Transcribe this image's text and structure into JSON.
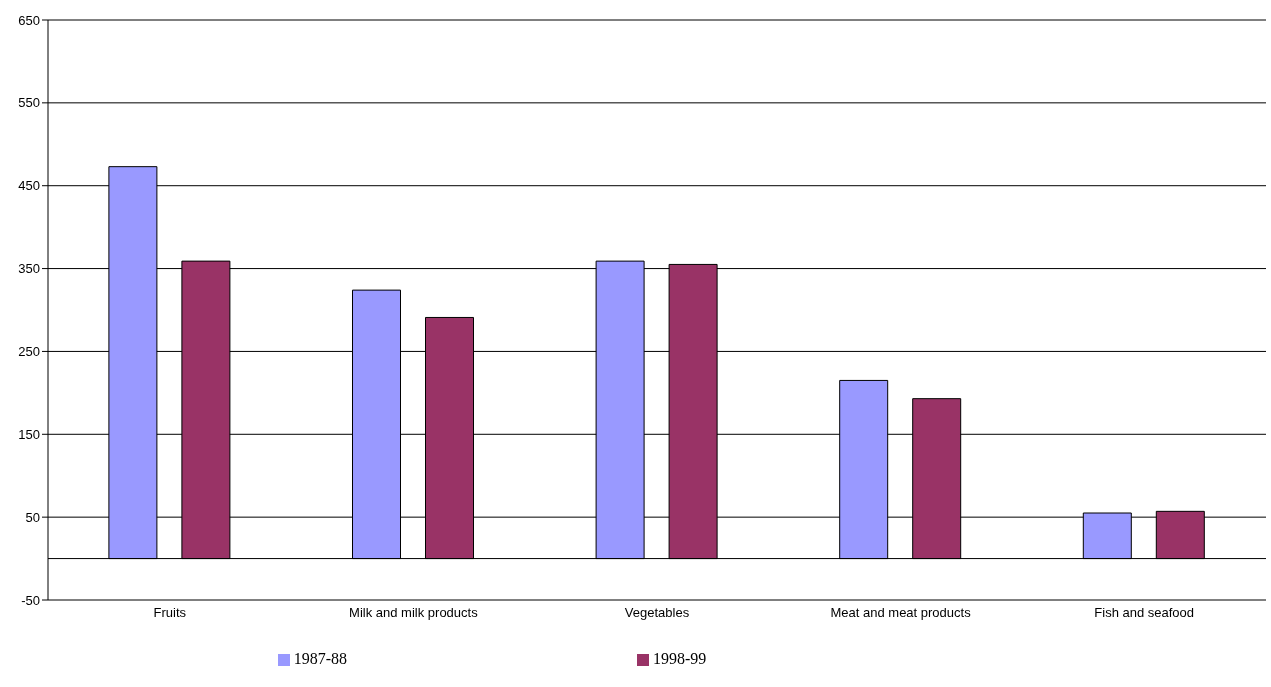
{
  "chart_data": {
    "type": "bar",
    "categories": [
      "Fruits",
      "Milk and milk products",
      "Vegetables",
      "Meat and meat products",
      "Fish and seafood"
    ],
    "series": [
      {
        "name": "1987-88",
        "color": "#9999ff",
        "values": [
          473,
          324,
          359,
          215,
          55
        ]
      },
      {
        "name": "1998-99",
        "color": "#993366",
        "values": [
          359,
          291,
          355,
          193,
          57
        ]
      }
    ],
    "ylim": [
      -50,
      650
    ],
    "yticks": [
      -50,
      50,
      150,
      250,
      350,
      450,
      550,
      650
    ],
    "grid": "y",
    "legend": "bottom"
  }
}
